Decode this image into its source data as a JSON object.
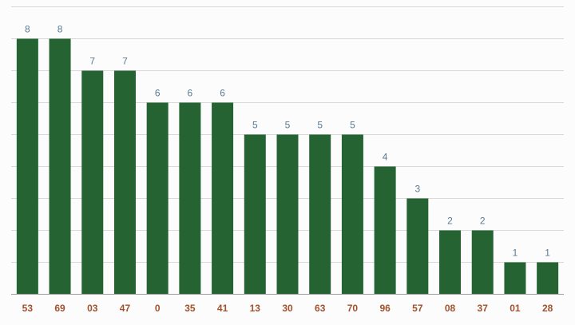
{
  "chart_data": {
    "type": "bar",
    "categories": [
      "53",
      "69",
      "03",
      "47",
      "0",
      "35",
      "41",
      "13",
      "30",
      "63",
      "70",
      "96",
      "57",
      "08",
      "37",
      "01",
      "28"
    ],
    "values": [
      8,
      8,
      7,
      7,
      6,
      6,
      6,
      5,
      5,
      5,
      5,
      4,
      3,
      2,
      2,
      1,
      1
    ],
    "ylim": [
      0,
      9
    ],
    "grid": true,
    "legend": "none"
  },
  "colors": {
    "bar": "#256332",
    "value_label": "#5b7a93",
    "category_label": "#a0522d"
  }
}
